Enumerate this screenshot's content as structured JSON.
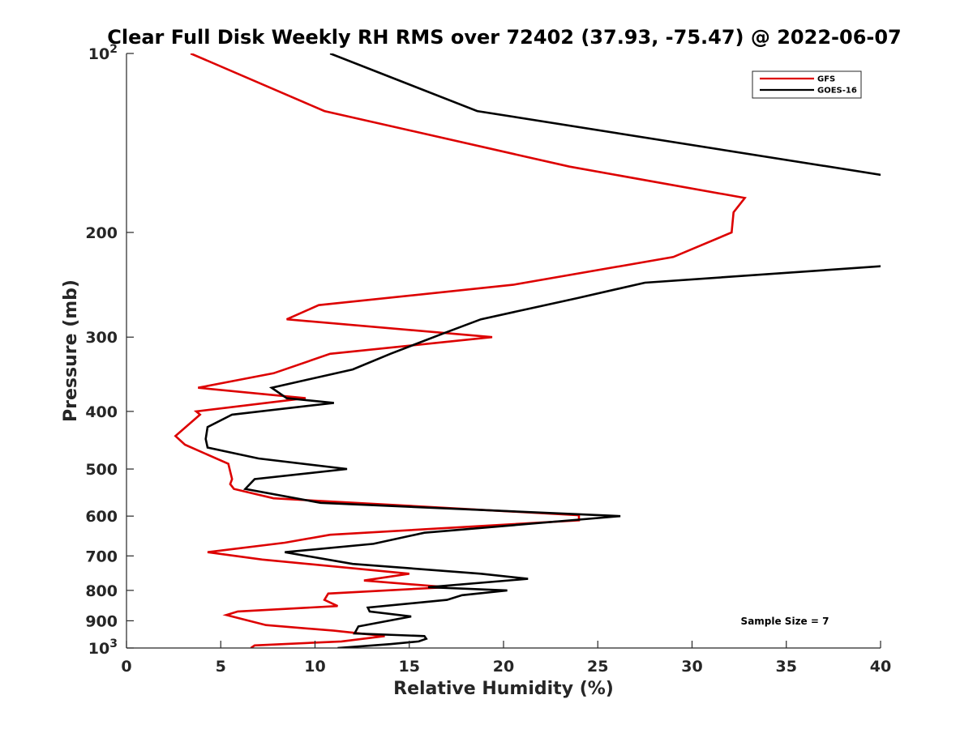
{
  "chart_data": {
    "type": "line",
    "title": "Clear Full Disk Weekly RH RMS over 72402 (37.93, -75.47) @ 2022-06-07",
    "xlabel": "Relative Humidity (%)",
    "ylabel": "Pressure (mb)",
    "xlim": [
      0,
      40
    ],
    "ylim": [
      100,
      1000
    ],
    "yscale": "log",
    "y_reversed": true,
    "grid": false,
    "legend_position": "top-right",
    "x_ticks": [
      "0",
      "5",
      "10",
      "15",
      "20",
      "25",
      "30",
      "35",
      "40"
    ],
    "y_ticks": [
      {
        "value": 100,
        "base": "10",
        "exp": "2"
      },
      {
        "value": 200,
        "label": "200"
      },
      {
        "value": 300,
        "label": "300"
      },
      {
        "value": 400,
        "label": "400"
      },
      {
        "value": 500,
        "label": "500"
      },
      {
        "value": 600,
        "label": "600"
      },
      {
        "value": 700,
        "label": "700"
      },
      {
        "value": 800,
        "label": "800"
      },
      {
        "value": 900,
        "label": "900"
      },
      {
        "value": 1000,
        "base": "10",
        "exp": "3"
      }
    ],
    "annotation": "Sample Size = 7",
    "series": [
      {
        "name": "GFS",
        "color": "#dd0000",
        "points": [
          [
            3.4,
            100
          ],
          [
            10.5,
            125
          ],
          [
            23.5,
            155
          ],
          [
            32.8,
            175
          ],
          [
            32.2,
            185
          ],
          [
            32.1,
            200
          ],
          [
            29.0,
            220
          ],
          [
            20.5,
            245
          ],
          [
            10.2,
            265
          ],
          [
            8.5,
            280
          ],
          [
            19.4,
            300
          ],
          [
            10.8,
            320
          ],
          [
            7.8,
            345
          ],
          [
            3.8,
            365
          ],
          [
            9.5,
            380
          ],
          [
            3.7,
            400
          ],
          [
            3.9,
            405
          ],
          [
            2.6,
            440
          ],
          [
            3.1,
            455
          ],
          [
            5.4,
            490
          ],
          [
            5.6,
            520
          ],
          [
            5.5,
            530
          ],
          [
            5.7,
            540
          ],
          [
            7.8,
            560
          ],
          [
            24.0,
            598
          ],
          [
            24.0,
            610
          ],
          [
            10.8,
            645
          ],
          [
            8.4,
            665
          ],
          [
            4.3,
            690
          ],
          [
            7.2,
            710
          ],
          [
            15.0,
            750
          ],
          [
            12.6,
            770
          ],
          [
            17.0,
            790
          ],
          [
            10.7,
            810
          ],
          [
            10.5,
            830
          ],
          [
            11.2,
            850
          ],
          [
            5.9,
            868
          ],
          [
            5.3,
            880
          ],
          [
            7.4,
            915
          ],
          [
            11.0,
            935
          ],
          [
            13.7,
            955
          ],
          [
            11.4,
            975
          ],
          [
            6.8,
            990
          ],
          [
            6.6,
            1000
          ]
        ]
      },
      {
        "name": "GOES-16",
        "color": "#000000",
        "points": [
          [
            10.8,
            100
          ],
          [
            18.6,
            125
          ],
          [
            40.0,
            160
          ],
          [
            40.5,
            162
          ],
          [
            40.5,
            228
          ],
          [
            40.0,
            228
          ],
          [
            27.5,
            243
          ],
          [
            23.9,
            258
          ],
          [
            18.8,
            280
          ],
          [
            16.9,
            295
          ],
          [
            14.0,
            320
          ],
          [
            12.0,
            340
          ],
          [
            7.7,
            365
          ],
          [
            8.5,
            380
          ],
          [
            11.0,
            387
          ],
          [
            5.6,
            405
          ],
          [
            4.3,
            425
          ],
          [
            4.2,
            445
          ],
          [
            4.3,
            460
          ],
          [
            7.0,
            480
          ],
          [
            11.7,
            500
          ],
          [
            6.8,
            520
          ],
          [
            6.3,
            540
          ],
          [
            10.3,
            570
          ],
          [
            26.2,
            600
          ],
          [
            15.8,
            640
          ],
          [
            13.1,
            668
          ],
          [
            8.4,
            690
          ],
          [
            12.0,
            722
          ],
          [
            18.8,
            750
          ],
          [
            21.3,
            765
          ],
          [
            16.0,
            790
          ],
          [
            20.2,
            800
          ],
          [
            17.8,
            815
          ],
          [
            17.0,
            830
          ],
          [
            12.8,
            855
          ],
          [
            12.9,
            868
          ],
          [
            15.1,
            885
          ],
          [
            12.3,
            920
          ],
          [
            12.1,
            945
          ],
          [
            15.8,
            955
          ],
          [
            15.9,
            965
          ],
          [
            15.5,
            975
          ],
          [
            14.0,
            985
          ],
          [
            11.2,
            1000
          ]
        ]
      }
    ]
  }
}
